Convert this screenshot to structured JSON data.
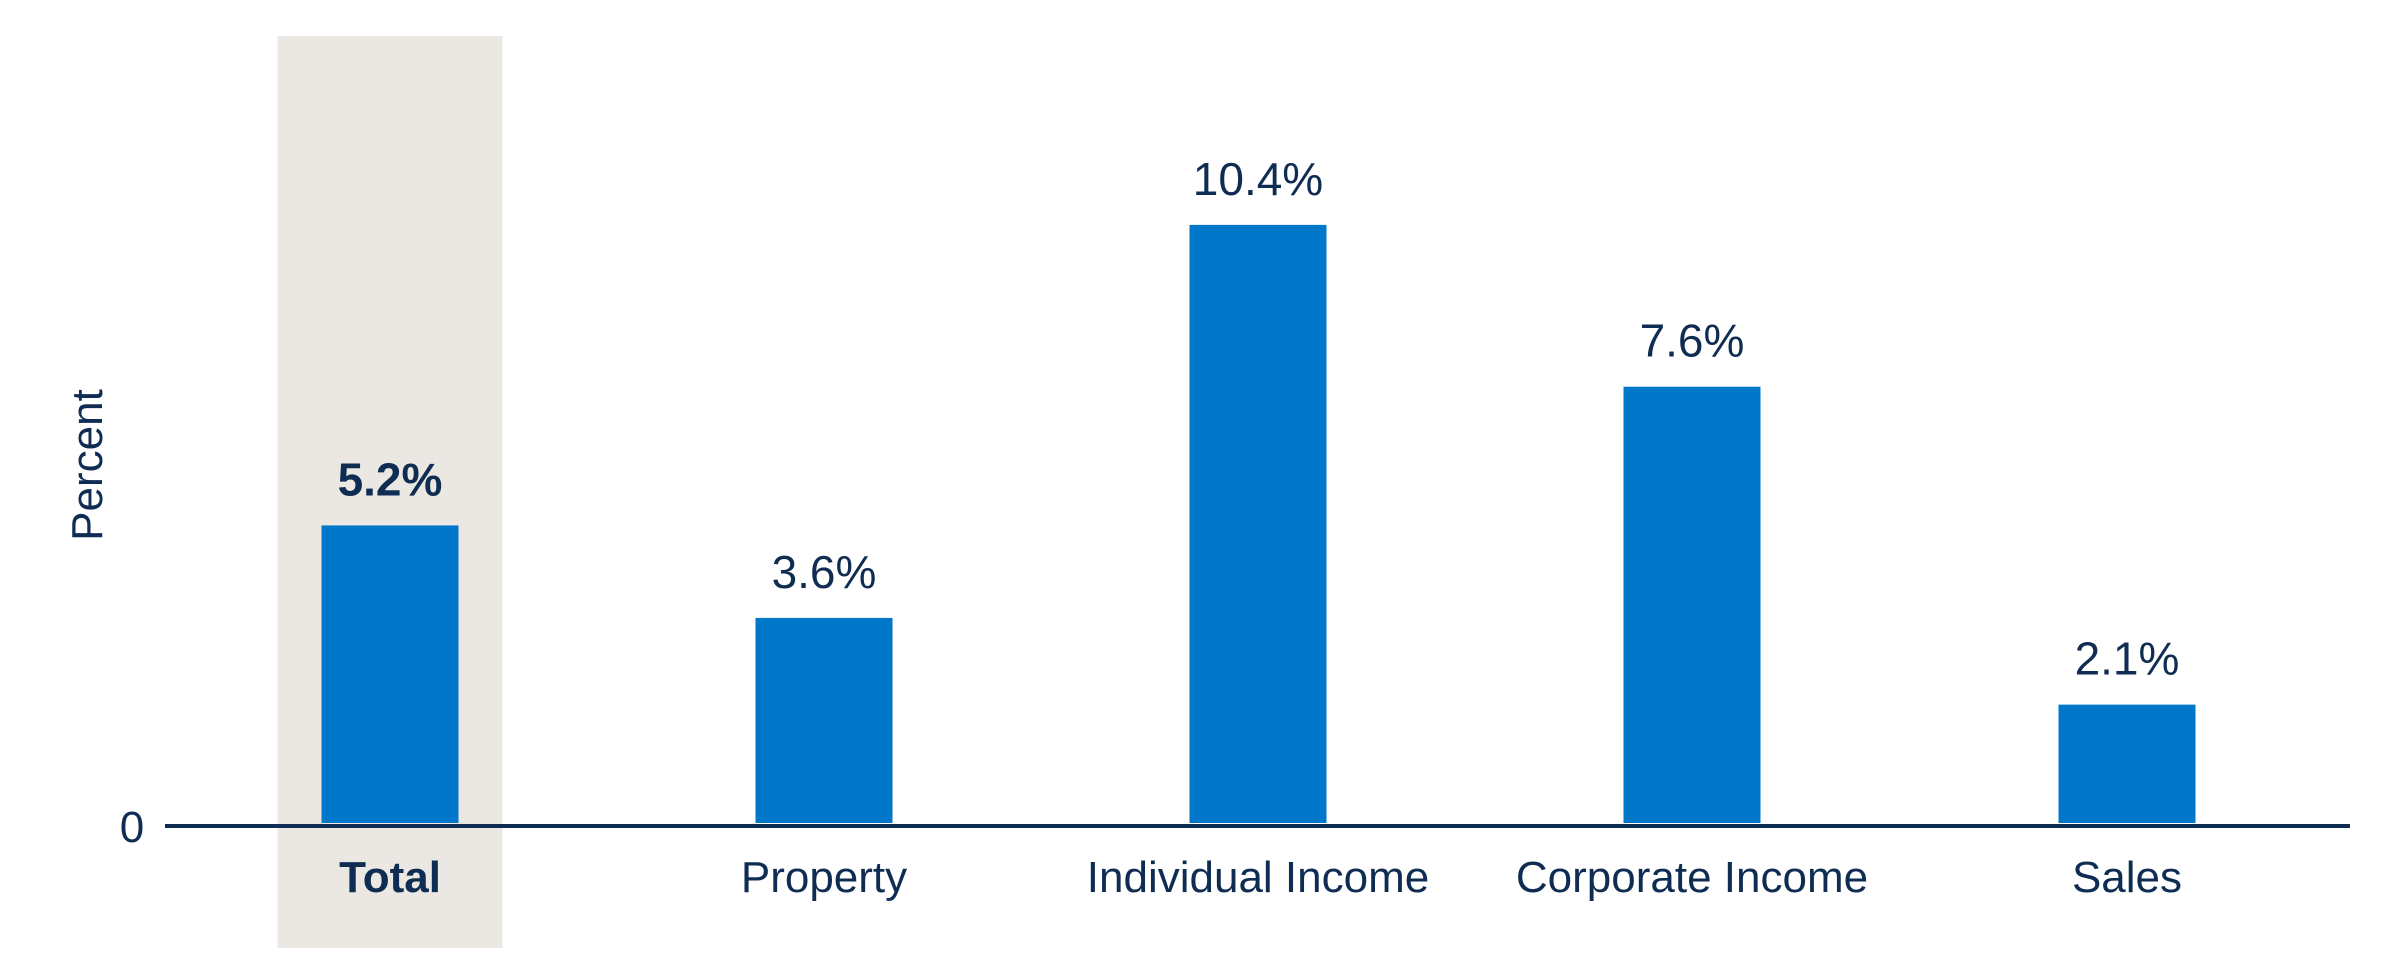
{
  "chart_data": {
    "type": "bar",
    "categories": [
      "Total",
      "Property",
      "Individual Income",
      "Corporate Income",
      "Sales"
    ],
    "values": [
      5.2,
      3.6,
      10.4,
      7.6,
      2.1
    ],
    "value_labels": [
      "5.2%",
      "3.6%",
      "10.4%",
      "7.6%",
      "2.1%"
    ],
    "highlight_category": "Total",
    "ylabel": "Percent",
    "xlabel": "",
    "y_ticks": [
      "0"
    ],
    "ylim": [
      0,
      12
    ],
    "grid": false,
    "legend": "none"
  },
  "colors": {
    "bar": "#0077c8",
    "highlight_band": "#ebe8e4",
    "text": "#0f2d52",
    "axis": "#0f2d52"
  }
}
